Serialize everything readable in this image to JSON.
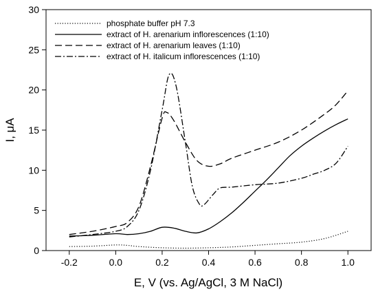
{
  "chart_data": {
    "type": "line",
    "xlabel": "E, V (vs. Ag/AgCl, 3 M NaCl)",
    "ylabel": "I, μA",
    "xlim": [
      -0.3,
      1.1
    ],
    "ylim": [
      0,
      30
    ],
    "xticks": [
      "-0.2",
      "0.0",
      "0.2",
      "0.4",
      "0.6",
      "0.8",
      "1.0"
    ],
    "xtick_values": [
      -0.2,
      0.0,
      0.2,
      0.4,
      0.6,
      0.8,
      1.0
    ],
    "yticks": [
      "0",
      "5",
      "10",
      "15",
      "20",
      "25",
      "30"
    ],
    "ytick_values": [
      0,
      5,
      10,
      15,
      20,
      25,
      30
    ],
    "grid": false,
    "legend_position": "top-left",
    "series": [
      {
        "name": "phosphate buffer pH 7.3",
        "style": "dotted",
        "color": "#000000",
        "points": [
          [
            -0.2,
            0.5
          ],
          [
            -0.1,
            0.55
          ],
          [
            0.0,
            0.7
          ],
          [
            0.05,
            0.65
          ],
          [
            0.1,
            0.5
          ],
          [
            0.2,
            0.35
          ],
          [
            0.3,
            0.3
          ],
          [
            0.4,
            0.35
          ],
          [
            0.5,
            0.45
          ],
          [
            0.6,
            0.65
          ],
          [
            0.7,
            0.85
          ],
          [
            0.8,
            1.05
          ],
          [
            0.9,
            1.5
          ],
          [
            1.0,
            2.4
          ]
        ]
      },
      {
        "name": "extract of H. arenarium inflorescences (1:10)",
        "style": "solid",
        "color": "#000000",
        "points": [
          [
            -0.2,
            1.8
          ],
          [
            -0.1,
            1.9
          ],
          [
            0.0,
            2.1
          ],
          [
            0.05,
            2.0
          ],
          [
            0.1,
            2.1
          ],
          [
            0.15,
            2.4
          ],
          [
            0.2,
            2.9
          ],
          [
            0.25,
            2.8
          ],
          [
            0.3,
            2.4
          ],
          [
            0.35,
            2.2
          ],
          [
            0.4,
            2.7
          ],
          [
            0.45,
            3.6
          ],
          [
            0.5,
            4.7
          ],
          [
            0.55,
            6.0
          ],
          [
            0.6,
            7.4
          ],
          [
            0.65,
            8.8
          ],
          [
            0.7,
            10.3
          ],
          [
            0.75,
            11.8
          ],
          [
            0.8,
            13.0
          ],
          [
            0.85,
            14.0
          ],
          [
            0.9,
            14.9
          ],
          [
            0.95,
            15.7
          ],
          [
            1.0,
            16.4
          ]
        ]
      },
      {
        "name": "extract of H. arenarium leaves (1:10)",
        "style": "dashed",
        "color": "#000000",
        "points": [
          [
            -0.2,
            2.0
          ],
          [
            -0.1,
            2.4
          ],
          [
            0.0,
            3.0
          ],
          [
            0.05,
            3.5
          ],
          [
            0.1,
            5.5
          ],
          [
            0.15,
            10.5
          ],
          [
            0.2,
            16.5
          ],
          [
            0.22,
            17.2
          ],
          [
            0.25,
            16.2
          ],
          [
            0.3,
            13.5
          ],
          [
            0.35,
            11.2
          ],
          [
            0.4,
            10.5
          ],
          [
            0.45,
            10.8
          ],
          [
            0.5,
            11.5
          ],
          [
            0.6,
            12.5
          ],
          [
            0.7,
            13.5
          ],
          [
            0.8,
            15.0
          ],
          [
            0.9,
            17.0
          ],
          [
            0.95,
            18.2
          ],
          [
            1.0,
            19.9
          ]
        ]
      },
      {
        "name": "extract of H. italicum inflorescences (1:10)",
        "style": "dashdot",
        "color": "#000000",
        "points": [
          [
            -0.2,
            1.7
          ],
          [
            -0.1,
            2.0
          ],
          [
            0.0,
            2.4
          ],
          [
            0.05,
            3.0
          ],
          [
            0.1,
            5.0
          ],
          [
            0.15,
            10.0
          ],
          [
            0.2,
            17.5
          ],
          [
            0.23,
            21.9
          ],
          [
            0.26,
            20.5
          ],
          [
            0.3,
            13.5
          ],
          [
            0.33,
            8.0
          ],
          [
            0.36,
            5.8
          ],
          [
            0.38,
            5.7
          ],
          [
            0.42,
            7.0
          ],
          [
            0.45,
            7.8
          ],
          [
            0.5,
            7.9
          ],
          [
            0.6,
            8.2
          ],
          [
            0.7,
            8.4
          ],
          [
            0.8,
            9.0
          ],
          [
            0.85,
            9.5
          ],
          [
            0.9,
            10.0
          ],
          [
            0.95,
            10.9
          ],
          [
            1.0,
            13.0
          ]
        ]
      }
    ]
  }
}
